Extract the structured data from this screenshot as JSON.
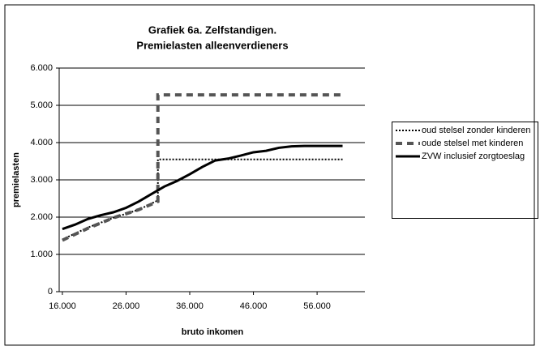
{
  "chart_data": {
    "type": "line",
    "title": [
      "Grafiek 6a. Zelfstandigen.",
      "Premielasten alleenverdieners"
    ],
    "xlabel": "bruto inkomen",
    "ylabel": "premielasten",
    "xlim": [
      15500,
      63500
    ],
    "xticks": [
      {
        "value": 16000,
        "label": "16.000"
      },
      {
        "value": 26000,
        "label": "26.000"
      },
      {
        "value": 36000,
        "label": "36.000"
      },
      {
        "value": 46000,
        "label": "46.000"
      },
      {
        "value": 56000,
        "label": "56.000"
      }
    ],
    "ylim": [
      0,
      6000
    ],
    "yticks": [
      0,
      {
        "value": 1000,
        "label": "1.000"
      },
      {
        "value": 2000,
        "label": "2.000"
      },
      {
        "value": 3000,
        "label": "3.000"
      },
      {
        "value": 4000,
        "label": "4.000"
      },
      {
        "value": 5000,
        "label": "5.000"
      },
      {
        "value": 6000,
        "label": "6.000"
      }
    ],
    "grid": true,
    "legend": "right",
    "series": [
      {
        "name": "oud stelsel zonder kinderen",
        "color": "#000000",
        "dash": "2,2",
        "width": 2,
        "x": [
          16000,
          20000,
          24000,
          28000,
          31000,
          31000,
          60000
        ],
        "values": [
          1400,
          1720,
          1980,
          2200,
          2450,
          3550,
          3550
        ]
      },
      {
        "name": "oude stelsel met kinderen",
        "color": "#555555",
        "dash": "8,6",
        "width": 4,
        "x": [
          16000,
          20000,
          24000,
          28000,
          31000,
          31000,
          60000
        ],
        "values": [
          1380,
          1700,
          1980,
          2200,
          2420,
          5280,
          5280
        ]
      },
      {
        "name": "ZVW inclusief zorgtoeslag",
        "color": "#000000",
        "dash": "",
        "width": 3,
        "x": [
          16000,
          18000,
          20000,
          22000,
          24000,
          26000,
          28000,
          30000,
          32000,
          34000,
          36000,
          38000,
          40000,
          42000,
          44000,
          46000,
          48000,
          50000,
          52000,
          54000,
          56000,
          58000,
          60000
        ],
        "values": [
          1680,
          1800,
          1950,
          2050,
          2130,
          2250,
          2420,
          2620,
          2820,
          2970,
          3150,
          3350,
          3520,
          3570,
          3650,
          3740,
          3780,
          3860,
          3900,
          3910,
          3910,
          3910,
          3910
        ]
      }
    ]
  }
}
